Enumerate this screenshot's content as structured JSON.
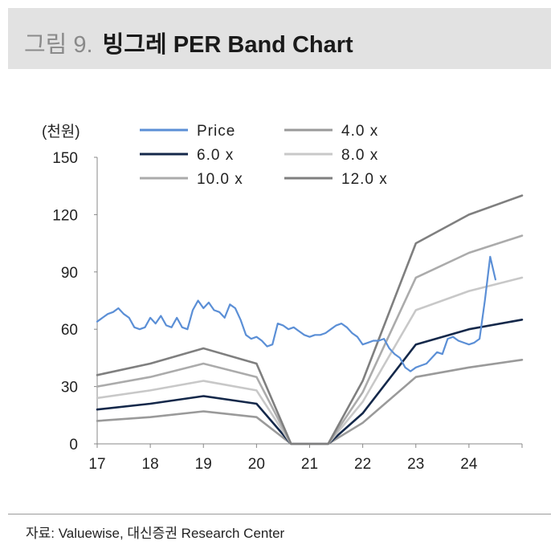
{
  "header": {
    "figure_label": "그림 9.",
    "title": "빙그레 PER Band Chart"
  },
  "source_note": "자료: Valuewise, 대신증권 Research Center",
  "chart_data": {
    "type": "line",
    "title": "빙그레 PER Band Chart",
    "ylabel": "(천원)",
    "xlabel": "",
    "ylim": [
      0,
      150
    ],
    "yticks": [
      0,
      30,
      60,
      90,
      120,
      150
    ],
    "xlim": [
      17,
      25
    ],
    "xticks": [
      17,
      18,
      19,
      20,
      21,
      22,
      23,
      24
    ],
    "xtick_labels": [
      "17",
      "18",
      "19",
      "20",
      "21",
      "22",
      "23",
      "24"
    ],
    "grid": false,
    "legend_position": "top",
    "band_x": [
      17,
      18,
      19,
      20,
      20.65,
      21.35,
      22,
      23,
      24,
      25
    ],
    "series": [
      {
        "name": "Price",
        "label": "Price",
        "color": "#5b8fd6",
        "x": [
          17.0,
          17.1,
          17.2,
          17.3,
          17.4,
          17.5,
          17.6,
          17.7,
          17.8,
          17.9,
          18.0,
          18.1,
          18.2,
          18.3,
          18.4,
          18.5,
          18.6,
          18.7,
          18.8,
          18.9,
          19.0,
          19.1,
          19.2,
          19.3,
          19.4,
          19.5,
          19.6,
          19.7,
          19.8,
          19.9,
          20.0,
          20.1,
          20.2,
          20.3,
          20.4,
          20.5,
          20.6,
          20.7,
          20.8,
          20.9,
          21.0,
          21.1,
          21.2,
          21.3,
          21.4,
          21.5,
          21.6,
          21.7,
          21.8,
          21.9,
          22.0,
          22.1,
          22.2,
          22.3,
          22.4,
          22.5,
          22.6,
          22.7,
          22.8,
          22.9,
          23.0,
          23.1,
          23.2,
          23.3,
          23.4,
          23.5,
          23.6,
          23.7,
          23.8,
          23.9,
          24.0,
          24.1,
          24.2,
          24.3,
          24.4,
          24.5
        ],
        "values": [
          64,
          66,
          68,
          69,
          71,
          68,
          66,
          61,
          60,
          61,
          66,
          63,
          67,
          62,
          61,
          66,
          61,
          60,
          70,
          75,
          71,
          74,
          70,
          69,
          66,
          73,
          71,
          65,
          57,
          55,
          56,
          54,
          51,
          52,
          63,
          62,
          60,
          61,
          59,
          57,
          56,
          57,
          57,
          58,
          60,
          62,
          63,
          61,
          58,
          56,
          52,
          53,
          54,
          54,
          55,
          50,
          47,
          45,
          40,
          38,
          40,
          41,
          42,
          45,
          48,
          47,
          55,
          56,
          54,
          53,
          52,
          53,
          55,
          75,
          98,
          86
        ]
      },
      {
        "name": "4.0 x",
        "label": "4.0 x",
        "color": "#9a9a9a",
        "values": [
          12,
          14,
          17,
          14,
          0,
          0,
          11,
          35,
          40,
          44
        ]
      },
      {
        "name": "6.0 x",
        "label": "6.0 x",
        "color": "#14284a",
        "values": [
          18,
          21,
          25,
          21,
          0,
          0,
          16,
          52,
          60,
          65
        ]
      },
      {
        "name": "8.0 x",
        "label": "8.0 x",
        "color": "#c8c8c8",
        "values": [
          24,
          28,
          33,
          28,
          0,
          0,
          22,
          70,
          80,
          87
        ]
      },
      {
        "name": "10.0 x",
        "label": "10.0 x",
        "color": "#ababab",
        "values": [
          30,
          35,
          42,
          35,
          0,
          0,
          27,
          87,
          100,
          109
        ]
      },
      {
        "name": "12.0 x",
        "label": "12.0 x",
        "color": "#7f7f7f",
        "values": [
          36,
          42,
          50,
          42,
          0,
          0,
          33,
          105,
          120,
          130
        ]
      }
    ]
  }
}
